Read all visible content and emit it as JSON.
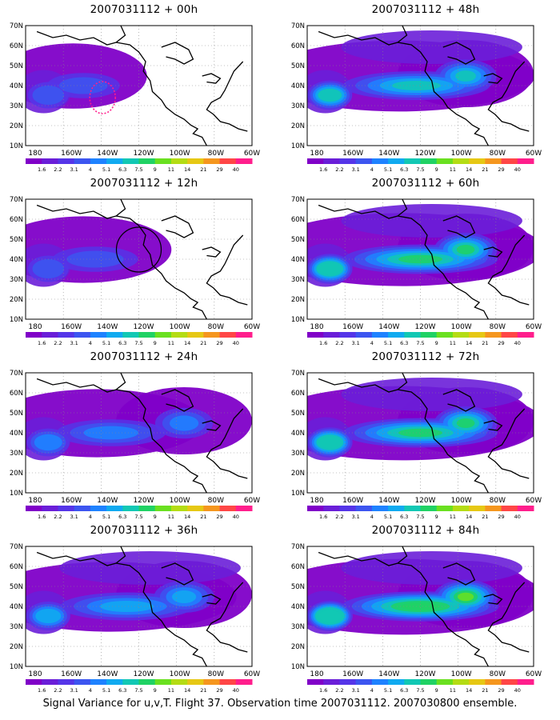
{
  "panels": [
    {
      "title": "2007031112 + 00h",
      "intensity": 0.15,
      "east": 0.3,
      "marker": "dashed-circle"
    },
    {
      "title": "2007031112 + 48h",
      "intensity": 0.45,
      "east": 0.95,
      "marker": "none"
    },
    {
      "title": "2007031112 + 12h",
      "intensity": 0.22,
      "east": 0.45,
      "marker": "circle"
    },
    {
      "title": "2007031112 + 60h",
      "intensity": 0.55,
      "east": 1.0,
      "marker": "none"
    },
    {
      "title": "2007031112 + 24h",
      "intensity": 0.3,
      "east": 0.65,
      "marker": "none"
    },
    {
      "title": "2007031112 + 72h",
      "intensity": 0.62,
      "east": 1.0,
      "marker": "none"
    },
    {
      "title": "2007031112 + 36h",
      "intensity": 0.38,
      "east": 0.85,
      "marker": "none"
    },
    {
      "title": "2007031112 + 84h",
      "intensity": 0.7,
      "east": 1.0,
      "marker": "none"
    }
  ],
  "lat_labels": [
    "10N",
    "20N",
    "30N",
    "40N",
    "50N",
    "60N",
    "70N"
  ],
  "lon_labels": [
    "180",
    "160W",
    "140W",
    "120W",
    "100W",
    "80W",
    "60W"
  ],
  "colorbar": {
    "labels": [
      "1.6",
      "2.2",
      "3.1",
      "4",
      "5.1",
      "6.3",
      "7.5",
      "9",
      "11",
      "14",
      "21",
      "29",
      "40"
    ],
    "colors": [
      "#8000c8",
      "#6a1ed8",
      "#5535e8",
      "#3c55f0",
      "#1e82ff",
      "#10aaf0",
      "#12c8b4",
      "#20d264",
      "#6ae020",
      "#b4dc14",
      "#e6c814",
      "#f5961e",
      "#ff4646",
      "#ff1e8c"
    ]
  },
  "footer": "Signal Variance for u,v,T. Flight 37. Observation time 2007031112. 2007030800 ensemble."
}
